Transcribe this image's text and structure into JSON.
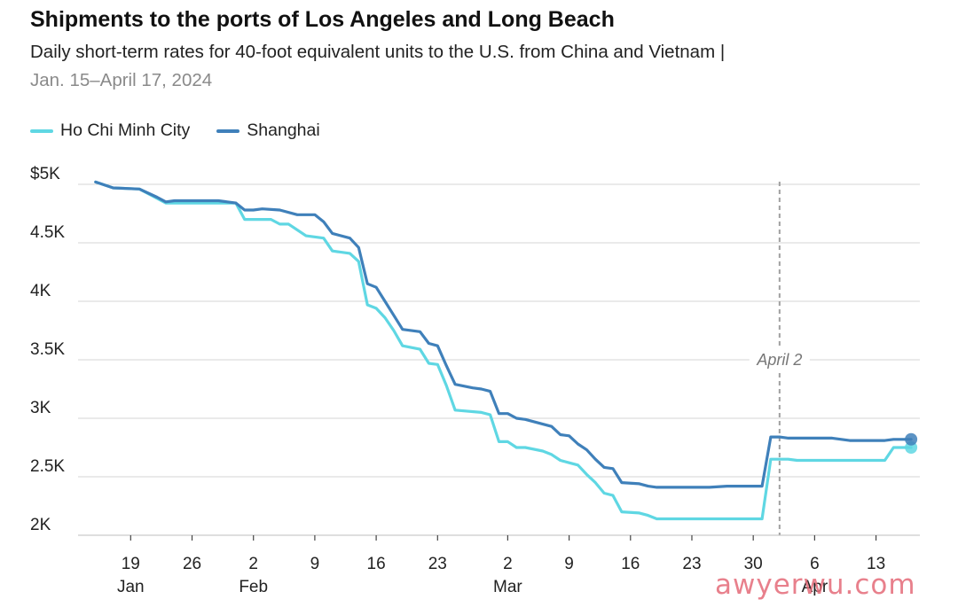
{
  "header": {
    "title": "Shipments to the ports of Los Angeles and Long Beach",
    "subtitle": "Daily short-term rates for 40-foot equivalent units to the U.S. from China and Vietnam |",
    "date_range": "Jan. 15–April 17, 2024"
  },
  "watermark": "awyerwu.com",
  "chart_data": {
    "type": "line",
    "title": "Shipments to the ports of Los Angeles and Long Beach",
    "subtitle": "Daily short-term rates for 40-foot equivalent units to the U.S. from China and Vietnam | Jan. 15–April 17, 2024",
    "xlabel": "",
    "ylabel": "",
    "x_type": "date",
    "xlim": [
      "2024-01-13",
      "2024-04-18"
    ],
    "ylim": [
      2000,
      5000
    ],
    "y_ticks": [
      {
        "value": 2000,
        "label": "2K"
      },
      {
        "value": 2500,
        "label": "2.5K"
      },
      {
        "value": 3000,
        "label": "3K"
      },
      {
        "value": 3500,
        "label": "3.5K"
      },
      {
        "value": 4000,
        "label": "4K"
      },
      {
        "value": 4500,
        "label": "4.5K"
      },
      {
        "value": 5000,
        "label": "$5K"
      }
    ],
    "x_ticks": [
      {
        "date": "2024-01-19",
        "label": "19",
        "month": "Jan"
      },
      {
        "date": "2024-01-26",
        "label": "26",
        "month": ""
      },
      {
        "date": "2024-02-02",
        "label": "2",
        "month": "Feb"
      },
      {
        "date": "2024-02-09",
        "label": "9",
        "month": ""
      },
      {
        "date": "2024-02-16",
        "label": "16",
        "month": ""
      },
      {
        "date": "2024-02-23",
        "label": "23",
        "month": ""
      },
      {
        "date": "2024-03-02",
        "label": "2",
        "month": "Mar"
      },
      {
        "date": "2024-03-09",
        "label": "9",
        "month": ""
      },
      {
        "date": "2024-03-16",
        "label": "16",
        "month": ""
      },
      {
        "date": "2024-03-23",
        "label": "23",
        "month": ""
      },
      {
        "date": "2024-03-30",
        "label": "30",
        "month": ""
      },
      {
        "date": "2024-04-06",
        "label": "6",
        "month": "Apr"
      },
      {
        "date": "2024-04-13",
        "label": "13",
        "month": ""
      }
    ],
    "grid": true,
    "legend_position": "top-left",
    "annotations": [
      {
        "type": "vline",
        "date": "2024-04-02",
        "label": "April 2"
      }
    ],
    "series": [
      {
        "name": "Ho Chi Minh City",
        "color": "#5fd7e3",
        "points": [
          [
            "2024-01-15",
            5020
          ],
          [
            "2024-01-17",
            4970
          ],
          [
            "2024-01-20",
            4960
          ],
          [
            "2024-01-22",
            4880
          ],
          [
            "2024-01-23",
            4840
          ],
          [
            "2024-01-31",
            4840
          ],
          [
            "2024-02-01",
            4700
          ],
          [
            "2024-02-04",
            4700
          ],
          [
            "2024-02-05",
            4660
          ],
          [
            "2024-02-06",
            4660
          ],
          [
            "2024-02-08",
            4560
          ],
          [
            "2024-02-10",
            4540
          ],
          [
            "2024-02-11",
            4430
          ],
          [
            "2024-02-13",
            4410
          ],
          [
            "2024-02-14",
            4340
          ],
          [
            "2024-02-15",
            3970
          ],
          [
            "2024-02-16",
            3940
          ],
          [
            "2024-02-17",
            3860
          ],
          [
            "2024-02-18",
            3750
          ],
          [
            "2024-02-19",
            3620
          ],
          [
            "2024-02-21",
            3590
          ],
          [
            "2024-02-22",
            3470
          ],
          [
            "2024-02-23",
            3460
          ],
          [
            "2024-02-24",
            3280
          ],
          [
            "2024-02-25",
            3070
          ],
          [
            "2024-02-28",
            3050
          ],
          [
            "2024-02-29",
            3030
          ],
          [
            "2024-03-01",
            2800
          ],
          [
            "2024-03-02",
            2800
          ],
          [
            "2024-03-03",
            2750
          ],
          [
            "2024-03-04",
            2750
          ],
          [
            "2024-03-06",
            2720
          ],
          [
            "2024-03-07",
            2690
          ],
          [
            "2024-03-08",
            2640
          ],
          [
            "2024-03-09",
            2620
          ],
          [
            "2024-03-10",
            2600
          ],
          [
            "2024-03-11",
            2520
          ],
          [
            "2024-03-12",
            2450
          ],
          [
            "2024-03-13",
            2360
          ],
          [
            "2024-03-14",
            2340
          ],
          [
            "2024-03-15",
            2200
          ],
          [
            "2024-03-17",
            2190
          ],
          [
            "2024-03-18",
            2170
          ],
          [
            "2024-03-19",
            2140
          ],
          [
            "2024-03-31",
            2140
          ],
          [
            "2024-04-01",
            2650
          ],
          [
            "2024-04-03",
            2650
          ],
          [
            "2024-04-04",
            2640
          ],
          [
            "2024-04-14",
            2640
          ],
          [
            "2024-04-15",
            2750
          ],
          [
            "2024-04-17",
            2750
          ]
        ]
      },
      {
        "name": "Shanghai",
        "color": "#3f80ba",
        "points": [
          [
            "2024-01-15",
            5020
          ],
          [
            "2024-01-17",
            4970
          ],
          [
            "2024-01-20",
            4960
          ],
          [
            "2024-01-22",
            4890
          ],
          [
            "2024-01-23",
            4850
          ],
          [
            "2024-01-24",
            4860
          ],
          [
            "2024-01-29",
            4860
          ],
          [
            "2024-01-30",
            4850
          ],
          [
            "2024-01-31",
            4840
          ],
          [
            "2024-02-01",
            4780
          ],
          [
            "2024-02-02",
            4780
          ],
          [
            "2024-02-03",
            4790
          ],
          [
            "2024-02-05",
            4780
          ],
          [
            "2024-02-07",
            4740
          ],
          [
            "2024-02-09",
            4740
          ],
          [
            "2024-02-10",
            4680
          ],
          [
            "2024-02-11",
            4580
          ],
          [
            "2024-02-13",
            4540
          ],
          [
            "2024-02-14",
            4460
          ],
          [
            "2024-02-15",
            4150
          ],
          [
            "2024-02-16",
            4120
          ],
          [
            "2024-02-17",
            4000
          ],
          [
            "2024-02-18",
            3880
          ],
          [
            "2024-02-19",
            3760
          ],
          [
            "2024-02-21",
            3740
          ],
          [
            "2024-02-22",
            3640
          ],
          [
            "2024-02-23",
            3620
          ],
          [
            "2024-02-24",
            3450
          ],
          [
            "2024-02-25",
            3290
          ],
          [
            "2024-02-27",
            3260
          ],
          [
            "2024-02-28",
            3250
          ],
          [
            "2024-02-29",
            3230
          ],
          [
            "2024-03-01",
            3040
          ],
          [
            "2024-03-02",
            3040
          ],
          [
            "2024-03-03",
            3000
          ],
          [
            "2024-03-04",
            2990
          ],
          [
            "2024-03-06",
            2950
          ],
          [
            "2024-03-07",
            2930
          ],
          [
            "2024-03-08",
            2860
          ],
          [
            "2024-03-09",
            2850
          ],
          [
            "2024-03-10",
            2780
          ],
          [
            "2024-03-11",
            2730
          ],
          [
            "2024-03-12",
            2650
          ],
          [
            "2024-03-13",
            2580
          ],
          [
            "2024-03-14",
            2570
          ],
          [
            "2024-03-15",
            2450
          ],
          [
            "2024-03-17",
            2440
          ],
          [
            "2024-03-18",
            2420
          ],
          [
            "2024-03-19",
            2410
          ],
          [
            "2024-03-25",
            2410
          ],
          [
            "2024-03-27",
            2420
          ],
          [
            "2024-03-31",
            2420
          ],
          [
            "2024-04-01",
            2840
          ],
          [
            "2024-04-02",
            2840
          ],
          [
            "2024-04-03",
            2830
          ],
          [
            "2024-04-08",
            2830
          ],
          [
            "2024-04-10",
            2810
          ],
          [
            "2024-04-14",
            2810
          ],
          [
            "2024-04-15",
            2820
          ],
          [
            "2024-04-17",
            2820
          ]
        ]
      }
    ]
  }
}
